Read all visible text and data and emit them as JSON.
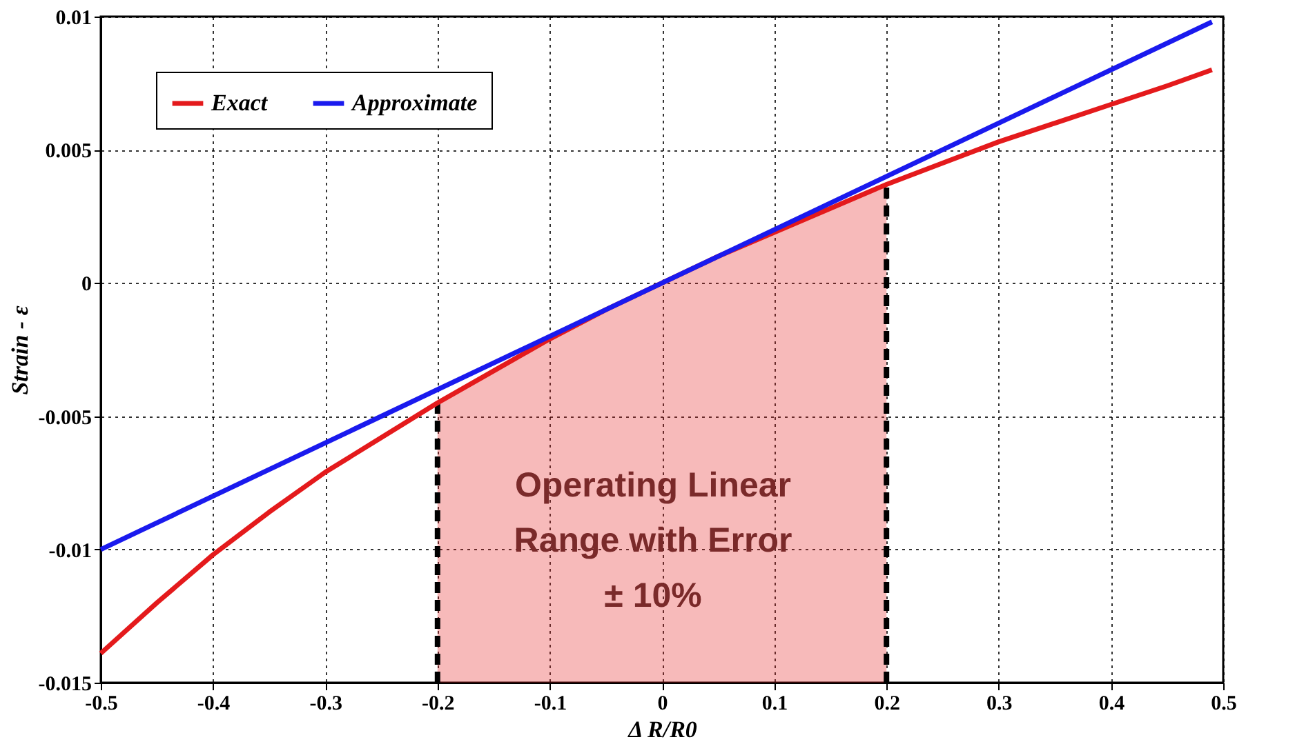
{
  "chart_data": {
    "type": "line",
    "xlabel": "Δ R/R0",
    "ylabel": "Strain - ε",
    "xlim": [
      -0.5,
      0.5
    ],
    "xticks": [
      -0.5,
      -0.4,
      -0.3,
      -0.2,
      -0.1,
      0,
      0.1,
      0.2,
      0.3,
      0.4,
      0.5
    ],
    "ylim": [
      -0.015,
      0.01
    ],
    "yticks": [
      -0.015,
      -0.01,
      -0.005,
      0,
      0.005,
      0.01
    ],
    "grid": true,
    "legend": "top left",
    "series": [
      {
        "type": "line",
        "color": "#000000",
        "line_style": "dashed",
        "x": [
          -0.2,
          -0.2
        ],
        "values": [
          -0.015,
          -0.0045
        ]
      },
      {
        "type": "line",
        "color": "#000000",
        "line_style": "dashed",
        "x": [
          0.2,
          0.2
        ],
        "values": [
          -0.015,
          0.0037
        ]
      },
      {
        "name": "Exact",
        "color": "#e41a1c",
        "x": [
          -0.5,
          -0.45,
          -0.4,
          -0.35,
          -0.3,
          -0.25,
          -0.2,
          -0.15,
          -0.1,
          -0.05,
          0,
          0.05,
          0.1,
          0.15,
          0.2,
          0.25,
          0.3,
          0.35,
          0.4,
          0.45,
          0.49
        ],
        "values": [
          -0.0139,
          -0.012,
          -0.0102,
          -0.0086,
          -0.0071,
          -0.0058,
          -0.0045,
          -0.0033,
          -0.0021,
          -0.001,
          0,
          0.001,
          0.0019,
          0.0028,
          0.0037,
          0.0045,
          0.0053,
          0.006,
          0.0067,
          0.0074,
          0.008
        ],
        "lower": [
          null,
          null,
          null,
          null,
          null,
          null,
          -0.015,
          -0.015,
          -0.015,
          -0.015,
          -0.015,
          -0.015,
          -0.015,
          -0.015,
          -0.015,
          null,
          null,
          null,
          null,
          null,
          null
        ],
        "upper": [
          null,
          null,
          null,
          null,
          null,
          null,
          -0.0045,
          -0.0033,
          -0.0021,
          -0.001,
          0,
          0.001,
          0.0019,
          0.0028,
          0.0037,
          null,
          null,
          null,
          null,
          null,
          null
        ]
      },
      {
        "name": "Approximate",
        "color": "#1a1aee",
        "x": [
          -0.5,
          0.49
        ],
        "values": [
          -0.01,
          0.0098
        ]
      }
    ],
    "annotations": [
      "Operating Linear\nRange with Error\n± 10%"
    ]
  }
}
